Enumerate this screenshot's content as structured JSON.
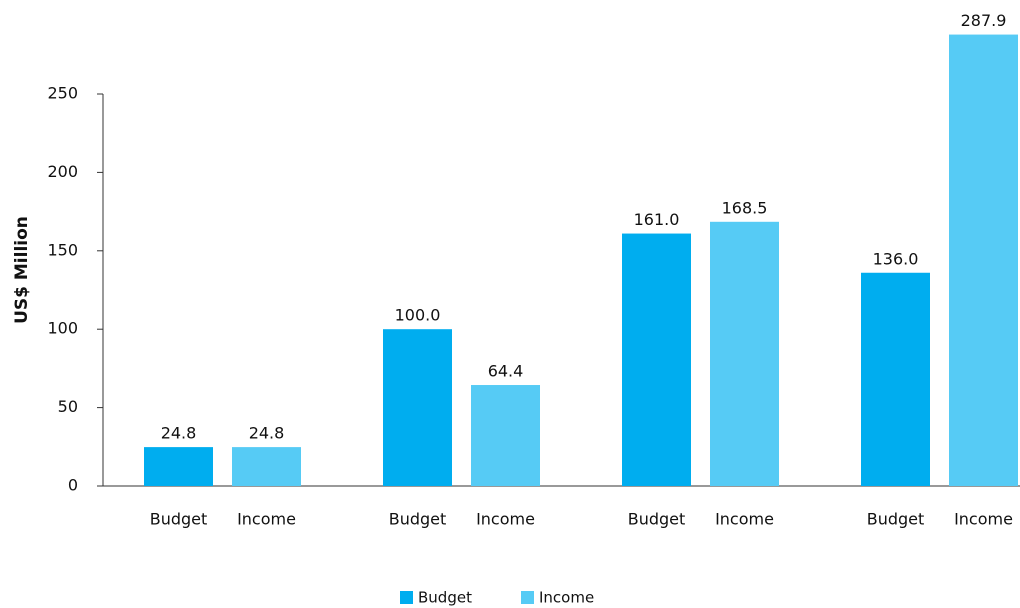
{
  "chart_data": {
    "type": "bar",
    "y_label": "US$ Million",
    "categories": [
      null,
      null,
      null,
      null
    ],
    "series": [
      {
        "name": "Budget",
        "color": "#00adef",
        "values": [
          24.8,
          100.0,
          161.0,
          136.0
        ],
        "value_labels": [
          "24.8",
          "100.0",
          "161.0",
          "136.0"
        ]
      },
      {
        "name": "Income",
        "color": "#56cbf5",
        "values": [
          24.8,
          64.4,
          168.5,
          287.9
        ],
        "value_labels": [
          "24.8",
          "64.4",
          "168.5",
          "287.9"
        ]
      }
    ],
    "ylim": [
      0,
      250
    ],
    "yticks": [
      0,
      50,
      100,
      150,
      200,
      250
    ],
    "grid": false,
    "legend": "bottom"
  }
}
